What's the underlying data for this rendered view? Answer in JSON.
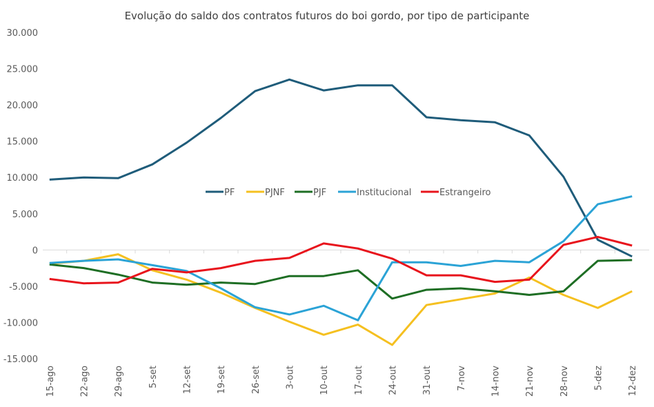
{
  "chart_data": {
    "type": "line",
    "title": "Evolução do saldo dos contratos futuros do boi gordo, por tipo de participante",
    "xlabel": "",
    "ylabel": "",
    "ylim": [
      -15000,
      30000
    ],
    "yticks": [
      30000,
      25000,
      20000,
      15000,
      10000,
      5000,
      0,
      -5000,
      -10000,
      -15000
    ],
    "ytick_labels": [
      "30.000",
      "25.000",
      "20.000",
      "15.000",
      "10.000",
      "5.000",
      "0",
      "-5.000",
      "-10.000",
      "-15.000"
    ],
    "grid": false,
    "legend_position": "center",
    "categories": [
      "15-ago",
      "22-ago",
      "29-ago",
      "5-set",
      "12-set",
      "19-set",
      "26-set",
      "3-out",
      "10-out",
      "17-out",
      "24-out",
      "31-out",
      "7-nov",
      "14-nov",
      "21-nov",
      "28-nov",
      "5-dez",
      "12-dez"
    ],
    "series": [
      {
        "name": "PF",
        "color": "#1f5c7a",
        "values": [
          9700,
          10000,
          9900,
          11800,
          14800,
          18200,
          21900,
          23500,
          22000,
          22700,
          22700,
          18300,
          17900,
          17600,
          15800,
          10100,
          1400,
          -900
        ]
      },
      {
        "name": "PJNF",
        "color": "#f5c020",
        "values": [
          -1900,
          -1500,
          -600,
          -2800,
          -4100,
          -5900,
          -8000,
          -9900,
          -11700,
          -10300,
          -13100,
          -7600,
          -6800,
          -6000,
          -3800,
          -6200,
          -8000,
          -5700
        ]
      },
      {
        "name": "PJF",
        "color": "#1e6e24",
        "values": [
          -2000,
          -2500,
          -3400,
          -4500,
          -4800,
          -4500,
          -4700,
          -3600,
          -3600,
          -2800,
          -6700,
          -5500,
          -5300,
          -5700,
          -6200,
          -5700,
          -1500,
          -1400
        ]
      },
      {
        "name": "Institucional",
        "color": "#2ba3d6",
        "values": [
          -1800,
          -1500,
          -1300,
          -2100,
          -2900,
          -5300,
          -7900,
          -8900,
          -7700,
          -9700,
          -1700,
          -1700,
          -2200,
          -1500,
          -1700,
          1200,
          6300,
          7400
        ]
      },
      {
        "name": "Estrangeiro",
        "color": "#e8141c",
        "values": [
          -4000,
          -4600,
          -4500,
          -2600,
          -3100,
          -2500,
          -1500,
          -1100,
          900,
          200,
          -1200,
          -3500,
          -3500,
          -4400,
          -4100,
          700,
          1800,
          600
        ]
      }
    ]
  }
}
